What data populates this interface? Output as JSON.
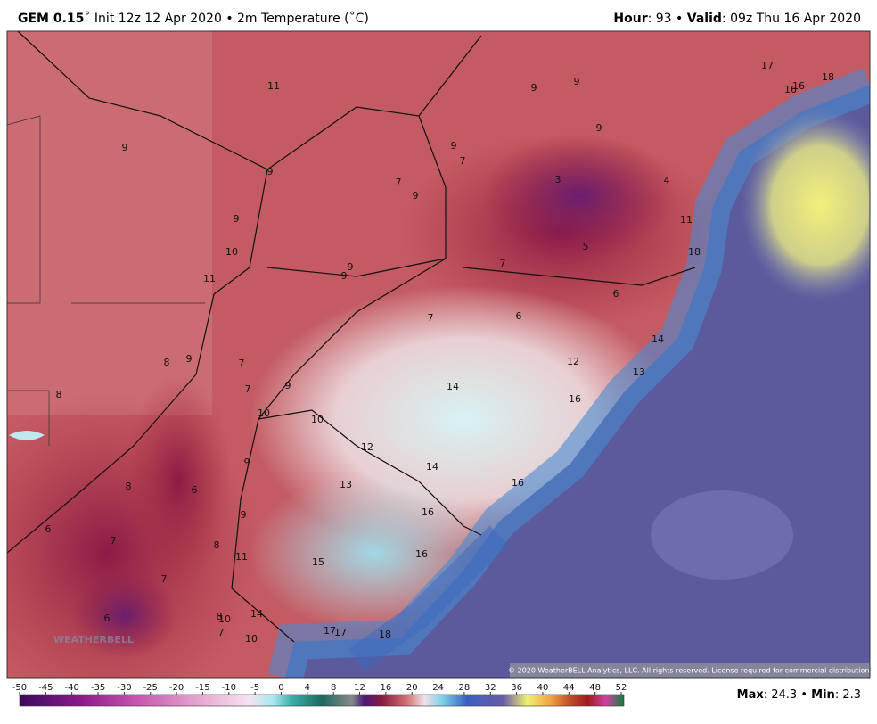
{
  "header": {
    "model": "GEM 0.15",
    "run": "˚ Init 12z 12 Apr 2020 • 2m Temperature (˚C)",
    "hour_label": "Hour",
    "hour_value": ": 93 •",
    "valid_label": "Valid",
    "valid_value": ": 09z Thu 16 Apr 2020"
  },
  "map_labels": [
    11,
    9,
    9,
    17,
    16,
    16,
    18,
    9,
    9,
    7,
    9,
    9,
    7,
    9,
    3,
    4,
    9,
    11,
    10,
    5,
    7,
    18,
    9,
    9,
    11,
    6,
    7,
    6,
    14,
    8,
    9,
    7,
    12,
    13,
    7,
    9,
    14,
    16,
    8,
    10,
    10,
    12,
    9,
    14,
    8,
    6,
    13,
    16,
    9,
    16,
    6,
    7,
    8,
    11,
    15,
    16,
    7,
    14,
    6,
    8,
    10,
    7,
    17,
    17,
    18,
    10
  ],
  "logo": "WEATHERBELL",
  "copyright": "© 2020 WeatherBELL Analytics, LLC. All rights reserved. License required for commercial distribution.",
  "colorbar_ticks": [
    -50,
    -45,
    -40,
    -35,
    -30,
    -25,
    -20,
    -15,
    -10,
    -5,
    0,
    4,
    8,
    12,
    16,
    20,
    24,
    28,
    32,
    36,
    40,
    44,
    48,
    52
  ],
  "footer": {
    "max_label": "Max",
    "max_value": ": 24.3 •",
    "min_label": "Min",
    "min_value": ": 2.3"
  }
}
